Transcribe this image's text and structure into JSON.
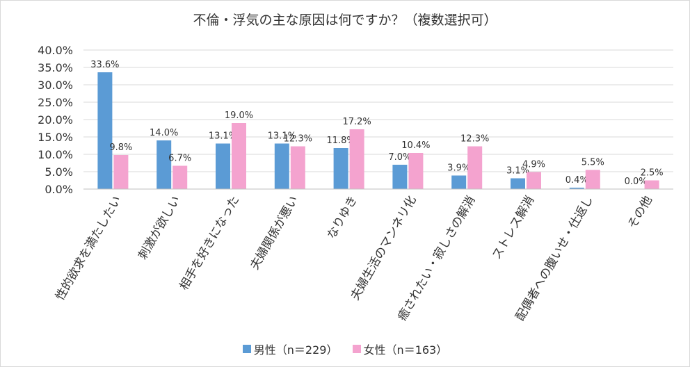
{
  "chart_data": {
    "type": "bar",
    "title": "不倫・浮気の主な原因は何ですか？（複数選択可）",
    "categories": [
      "性的欲求を満たしたい",
      "刺激が欲しい",
      "相手を好きになった",
      "夫婦関係が悪い",
      "なりゆき",
      "夫婦生活のマンネリ化",
      "癒されたい・寂しさの解消",
      "ストレス解消",
      "配偶者への腹いせ・仕返し",
      "その他"
    ],
    "series": [
      {
        "name": "男性（n＝229）",
        "values": [
          33.6,
          14.0,
          13.1,
          13.1,
          11.8,
          7.0,
          3.9,
          3.1,
          0.4,
          0.0
        ],
        "labels": [
          "33.6%",
          "14.0%",
          "13.1%",
          "13.1%",
          "11.8%",
          "7.0%",
          "3.9%",
          "3.1%",
          "0.4%",
          "0.0%"
        ],
        "color": "#5b9bd5"
      },
      {
        "name": "女性（n＝163）",
        "values": [
          9.8,
          6.7,
          19.0,
          12.3,
          17.2,
          10.4,
          12.3,
          4.9,
          5.5,
          2.5
        ],
        "labels": [
          "9.8%",
          "6.7%",
          "19.0%",
          "12.3%",
          "17.2%",
          "10.4%",
          "12.3%",
          "4.9%",
          "5.5%",
          "2.5%"
        ],
        "color": "#f4a3cf"
      }
    ],
    "yticks": [
      "0.0%",
      "5.0%",
      "10.0%",
      "15.0%",
      "20.0%",
      "25.0%",
      "30.0%",
      "35.0%",
      "40.0%"
    ],
    "ylim": [
      0,
      40
    ],
    "grid": true,
    "legend_position": "bottom"
  }
}
